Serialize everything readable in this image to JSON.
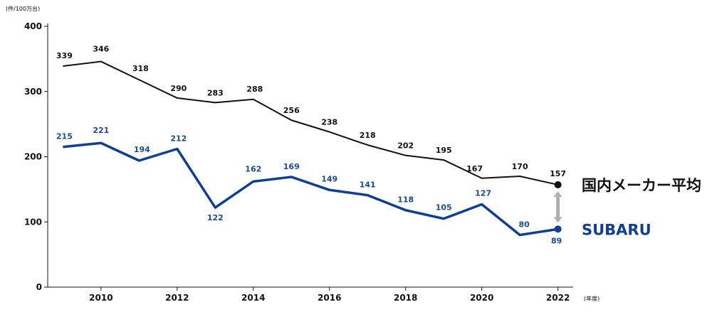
{
  "chart_data": {
    "type": "line",
    "y_unit": "(件/100万台)",
    "x_unit": "(年度)",
    "x": [
      2009,
      2010,
      2011,
      2012,
      2013,
      2014,
      2015,
      2016,
      2017,
      2018,
      2019,
      2020,
      2021,
      2022
    ],
    "x_ticks": [
      "2010",
      "2012",
      "2014",
      "2016",
      "2018",
      "2020",
      "2022"
    ],
    "y_ticks": [
      "0",
      "100",
      "200",
      "300",
      "400"
    ],
    "ylim": [
      0,
      400
    ],
    "xlim": [
      2008.6,
      2022.4
    ],
    "grid": false,
    "series": [
      {
        "name": "国内メーカー平均",
        "color": "#111111",
        "values": [
          339,
          346,
          318,
          290,
          283,
          288,
          256,
          238,
          218,
          202,
          195,
          167,
          170,
          157
        ]
      },
      {
        "name": "SUBARU",
        "color": "#0d3f96",
        "values": [
          215,
          221,
          194,
          212,
          122,
          162,
          169,
          149,
          141,
          118,
          105,
          127,
          80,
          89
        ]
      }
    ],
    "colors": {
      "gap_arrow": "#b0b0b0"
    }
  }
}
